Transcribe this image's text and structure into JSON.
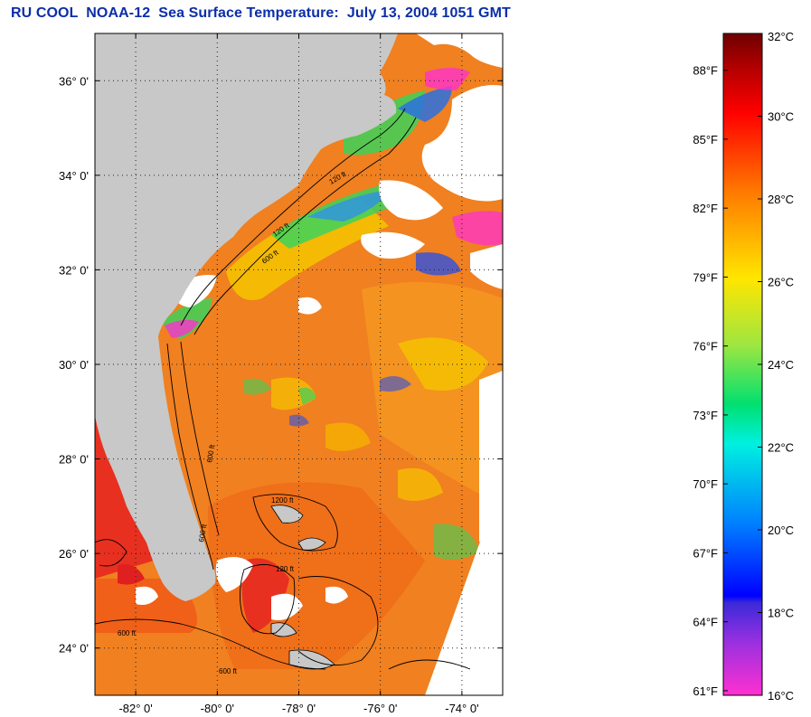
{
  "title": "RU COOL  NOAA-12  Sea Surface Temperature:  July 13, 2004 1051 GMT",
  "map": {
    "lon_range": [
      -83.0,
      -73.0
    ],
    "lat_range": [
      23.0,
      37.0
    ],
    "lon_ticks": [
      {
        "value": -82,
        "label": "-82° 0'"
      },
      {
        "value": -80,
        "label": "-80° 0'"
      },
      {
        "value": -78,
        "label": "-78° 0'"
      },
      {
        "value": -76,
        "label": "-76° 0'"
      },
      {
        "value": -74,
        "label": "-74° 0'"
      }
    ],
    "lat_ticks": [
      {
        "value": 36,
        "label": "36° 0'"
      },
      {
        "value": 34,
        "label": "34° 0'"
      },
      {
        "value": 32,
        "label": "32° 0'"
      },
      {
        "value": 30,
        "label": "30° 0'"
      },
      {
        "value": 28,
        "label": "28° 0'"
      },
      {
        "value": 26,
        "label": "26° 0'"
      },
      {
        "value": 24,
        "label": "24° 0'"
      }
    ],
    "contour_labels": [
      "120 ft",
      "600 ft",
      "120 ft",
      "600 ft",
      "600 ft",
      "1200 ft",
      "120 ft",
      "600 ft",
      "600 ft"
    ],
    "colors": {
      "land": "#c8c8c8",
      "cloud": "#ffffff",
      "warm": "#f07a1a",
      "hot": "#e8301a",
      "mid": "#f5c400",
      "cool": "#3cd25a",
      "cold": "#2050e0",
      "coldest": "#ff30d0"
    }
  },
  "colorbar": {
    "celsius_range": [
      16,
      32
    ],
    "celsius_labels": [
      "32°C",
      "30°C",
      "28°C",
      "26°C",
      "24°C",
      "22°C",
      "20°C",
      "18°C",
      "16°C"
    ],
    "fahrenheit_labels": [
      "88°F",
      "85°F",
      "82°F",
      "79°F",
      "76°F",
      "73°F",
      "70°F",
      "67°F",
      "64°F",
      "61°F"
    ]
  }
}
